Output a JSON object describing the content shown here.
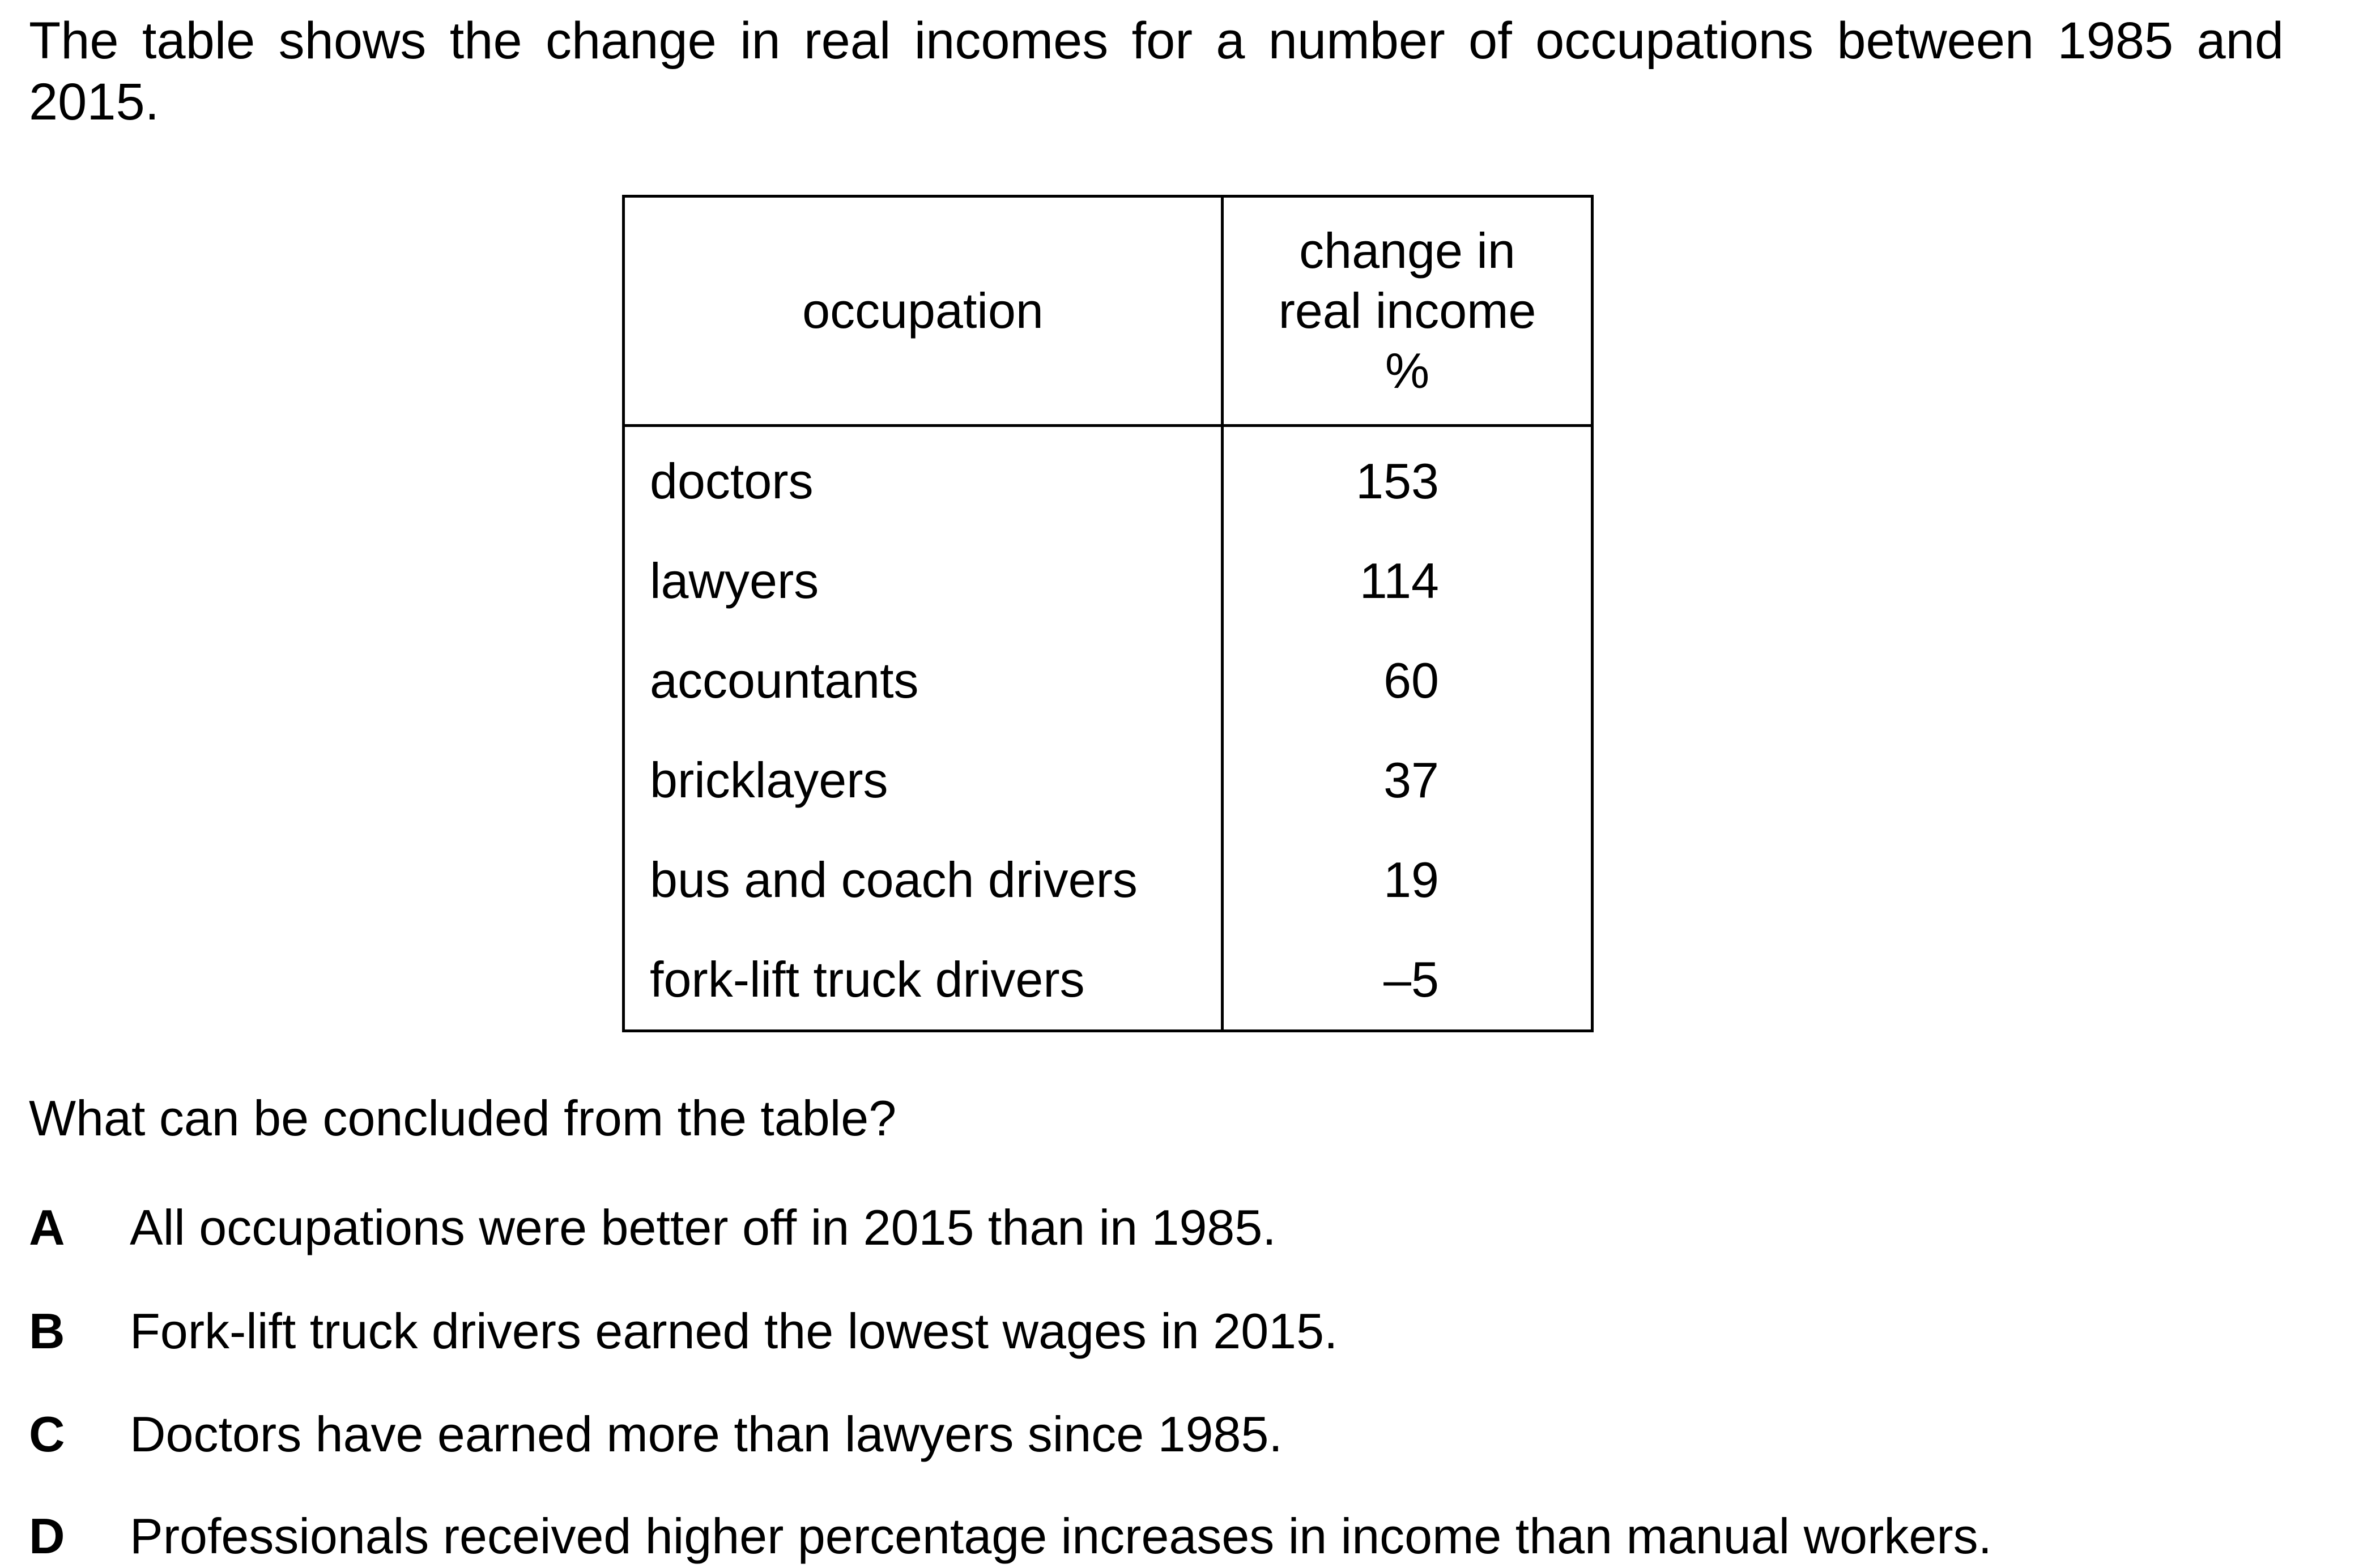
{
  "intro": "The table shows the change in real incomes for a number of occupations between 1985 and 2015.",
  "table": {
    "header_occupation": "occupation",
    "header_change_line1": "change in",
    "header_change_line2": "real income",
    "header_change_line3": "%",
    "rows": [
      {
        "occupation": "doctors",
        "change": "153"
      },
      {
        "occupation": "lawyers",
        "change": "114"
      },
      {
        "occupation": "accountants",
        "change": "60"
      },
      {
        "occupation": "bricklayers",
        "change": "37"
      },
      {
        "occupation": "bus and coach drivers",
        "change": "19"
      },
      {
        "occupation": "fork-lift truck drivers",
        "change": "–5"
      }
    ]
  },
  "question": "What can be concluded from the table?",
  "options": [
    {
      "letter": "A",
      "text": "All occupations were better off in 2015 than in 1985."
    },
    {
      "letter": "B",
      "text": "Fork-lift truck drivers earned the lowest wages in 2015."
    },
    {
      "letter": "C",
      "text": "Doctors have earned more than lawyers since 1985."
    },
    {
      "letter": "D",
      "text": "Professionals received higher percentage increases in income than manual workers."
    }
  ]
}
